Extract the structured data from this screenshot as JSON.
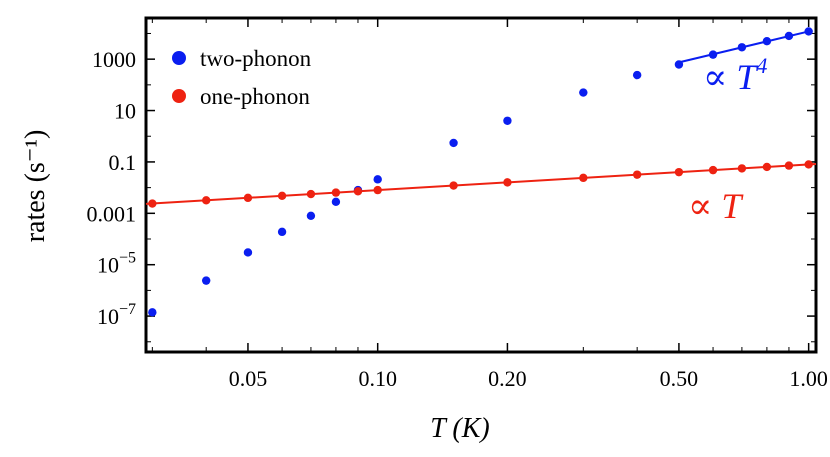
{
  "chart_data": {
    "type": "scatter",
    "title": "",
    "xlabel": "T (K)",
    "ylabel": "rates (s⁻¹)",
    "xscale": "log",
    "yscale": "log",
    "xlim": [
      0.029,
      1.04
    ],
    "ylim": [
      4e-09,
      40000
    ],
    "xticks": [
      {
        "value": 0.05,
        "label": "0.05"
      },
      {
        "value": 0.1,
        "label": "0.10"
      },
      {
        "value": 0.2,
        "label": "0.20"
      },
      {
        "value": 0.5,
        "label": "0.50"
      },
      {
        "value": 1.0,
        "label": "1.00"
      }
    ],
    "yticks": [
      {
        "value": 1000,
        "label": "1000"
      },
      {
        "value": 10,
        "label": "10"
      },
      {
        "value": 0.1,
        "label": "0.1"
      },
      {
        "value": 0.001,
        "label": "0.001"
      },
      {
        "value": 1e-05,
        "label": "10",
        "exp": "−5"
      },
      {
        "value": 1e-07,
        "label": "10",
        "exp": "−7"
      }
    ],
    "series": [
      {
        "name": "two-phonon",
        "color": "#0a1ef0",
        "x": [
          0.03,
          0.04,
          0.05,
          0.06,
          0.07,
          0.08,
          0.09,
          0.1,
          0.15,
          0.2,
          0.3,
          0.4,
          0.5,
          0.6,
          0.7,
          0.8,
          0.9,
          1.0
        ],
        "y": [
          1.4e-07,
          2.4e-06,
          3e-05,
          0.00019,
          0.0008,
          0.0028,
          0.008,
          0.021,
          0.55,
          4.0,
          50,
          240,
          620,
          1500,
          2900,
          5000,
          8000,
          12000
        ]
      },
      {
        "name": "one-phonon",
        "color": "#ee2211",
        "x": [
          0.03,
          0.04,
          0.05,
          0.06,
          0.07,
          0.08,
          0.09,
          0.1,
          0.15,
          0.2,
          0.3,
          0.4,
          0.5,
          0.6,
          0.7,
          0.8,
          0.9,
          1.0
        ],
        "y": [
          0.0024,
          0.0032,
          0.004,
          0.0048,
          0.0056,
          0.0064,
          0.0072,
          0.008,
          0.012,
          0.016,
          0.024,
          0.032,
          0.04,
          0.048,
          0.056,
          0.064,
          0.072,
          0.08
        ]
      }
    ],
    "fit_lines": [
      {
        "name": "fit-T4",
        "color": "#0a1ef0",
        "exponent": 4,
        "coef": 12000,
        "x_range": [
          0.5,
          1.0
        ]
      },
      {
        "name": "fit-T",
        "color": "#ee2211",
        "exponent": 1,
        "coef": 0.08,
        "x_range": [
          0.029,
          1.04
        ]
      }
    ],
    "annotations": [
      {
        "name": "annotation-T4",
        "prefix": "∝ T",
        "sup": "4",
        "color": "#0a1ef0"
      },
      {
        "name": "annotation-T",
        "prefix": "∝ T",
        "sup": "",
        "color": "#ee2211"
      }
    ],
    "legend": {
      "placement": "top-left",
      "entries": [
        "two-phonon",
        "one-phonon"
      ]
    }
  }
}
